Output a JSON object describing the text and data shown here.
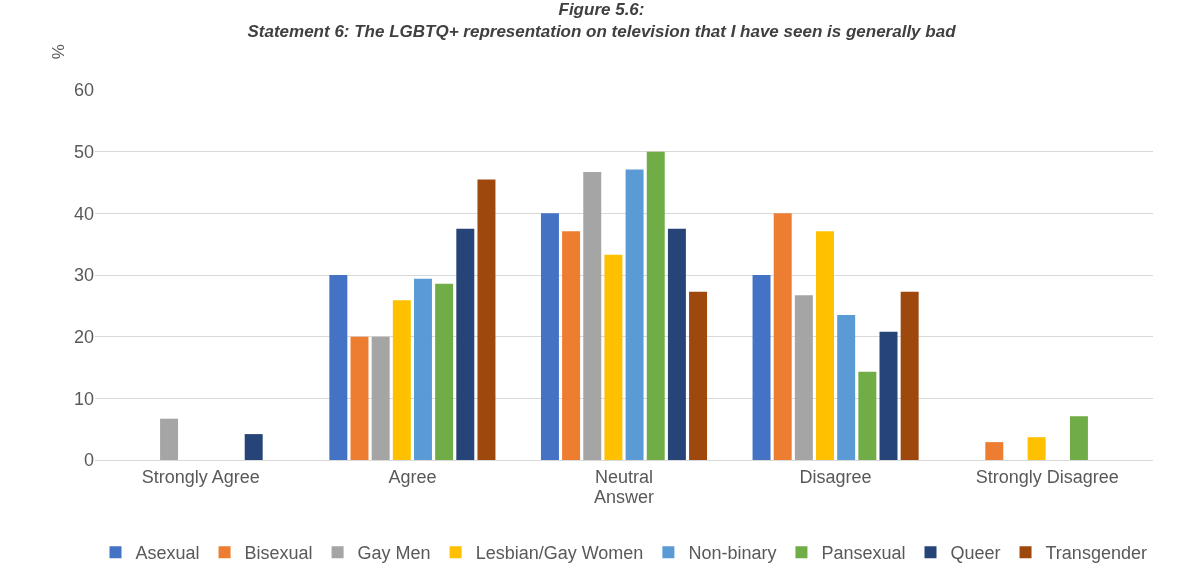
{
  "chart_data": {
    "type": "bar",
    "title": "Figure 5.6:",
    "subtitle": "Statement 6: The LGBTQ+ representation on television that I have seen is generally bad",
    "xlabel": "Answer",
    "ylabel": "%",
    "categories": [
      "Strongly Agree",
      "Agree",
      "Neutral",
      "Disagree",
      "Strongly Disagree"
    ],
    "series": [
      {
        "name": "Asexual",
        "color": "#4472c4",
        "values": [
          0,
          30,
          40,
          30,
          0
        ]
      },
      {
        "name": "Bisexual",
        "color": "#ed7d31",
        "values": [
          0,
          20,
          37.1,
          40,
          2.9
        ]
      },
      {
        "name": "Gay Men",
        "color": "#a5a5a5",
        "values": [
          6.7,
          20,
          46.7,
          26.7,
          0
        ]
      },
      {
        "name": "Lesbian/Gay Women",
        "color": "#ffc000",
        "values": [
          0,
          25.9,
          33.3,
          37.1,
          3.7
        ]
      },
      {
        "name": "Non-binary",
        "color": "#5b9bd5",
        "values": [
          0,
          29.4,
          47.1,
          23.5,
          0
        ]
      },
      {
        "name": "Pansexual",
        "color": "#70ad47",
        "values": [
          0,
          28.6,
          50,
          14.3,
          7.1
        ]
      },
      {
        "name": "Queer",
        "color": "#264478",
        "values": [
          4.2,
          37.5,
          37.5,
          20.8,
          0
        ]
      },
      {
        "name": "Transgender",
        "color": "#9e480e",
        "values": [
          0,
          45.5,
          27.3,
          27.3,
          0
        ]
      }
    ],
    "ylim": [
      0,
      60
    ],
    "yticks": [
      0,
      10,
      20,
      30,
      40,
      50,
      60
    ],
    "grid": "y",
    "legend": "bottom"
  }
}
